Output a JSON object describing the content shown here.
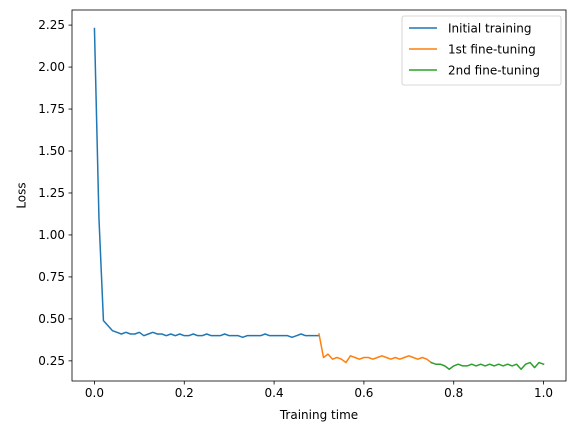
{
  "chart_data": {
    "type": "line",
    "title": "",
    "xlabel": "Training time",
    "ylabel": "Loss",
    "xlim": [
      -0.05,
      1.05
    ],
    "ylim": [
      0.13,
      2.34
    ],
    "xticks": [
      0.0,
      0.2,
      0.4,
      0.6,
      0.8,
      1.0
    ],
    "xtick_labels": [
      "0.0",
      "0.2",
      "0.4",
      "0.6",
      "0.8",
      "1.0"
    ],
    "yticks": [
      0.25,
      0.5,
      0.75,
      1.0,
      1.25,
      1.5,
      1.75,
      2.0,
      2.25
    ],
    "ytick_labels": [
      "0.25",
      "0.50",
      "0.75",
      "1.00",
      "1.25",
      "1.50",
      "1.75",
      "2.00",
      "2.25"
    ],
    "grid": false,
    "legend_position": "top-right",
    "series": [
      {
        "name": "Initial training",
        "color": "#1f77b4",
        "x": [
          0.0,
          0.01,
          0.02,
          0.03,
          0.04,
          0.05,
          0.06,
          0.07,
          0.08,
          0.09,
          0.1,
          0.11,
          0.12,
          0.13,
          0.14,
          0.15,
          0.16,
          0.17,
          0.18,
          0.19,
          0.2,
          0.21,
          0.22,
          0.23,
          0.24,
          0.25,
          0.26,
          0.27,
          0.28,
          0.29,
          0.3,
          0.31,
          0.32,
          0.33,
          0.34,
          0.35,
          0.36,
          0.37,
          0.38,
          0.39,
          0.4,
          0.41,
          0.42,
          0.43,
          0.44,
          0.45,
          0.46,
          0.47,
          0.48,
          0.49,
          0.5
        ],
        "y": [
          2.23,
          1.1,
          0.49,
          0.46,
          0.43,
          0.42,
          0.41,
          0.42,
          0.41,
          0.41,
          0.42,
          0.4,
          0.41,
          0.42,
          0.41,
          0.41,
          0.4,
          0.41,
          0.4,
          0.41,
          0.4,
          0.4,
          0.41,
          0.4,
          0.4,
          0.41,
          0.4,
          0.4,
          0.4,
          0.41,
          0.4,
          0.4,
          0.4,
          0.39,
          0.4,
          0.4,
          0.4,
          0.4,
          0.41,
          0.4,
          0.4,
          0.4,
          0.4,
          0.4,
          0.39,
          0.4,
          0.41,
          0.4,
          0.4,
          0.4,
          0.4
        ]
      },
      {
        "name": "1st fine-tuning",
        "color": "#ff7f0e",
        "x": [
          0.5,
          0.51,
          0.52,
          0.53,
          0.54,
          0.55,
          0.56,
          0.57,
          0.58,
          0.59,
          0.6,
          0.61,
          0.62,
          0.63,
          0.64,
          0.65,
          0.66,
          0.67,
          0.68,
          0.69,
          0.7,
          0.71,
          0.72,
          0.73,
          0.74,
          0.75
        ],
        "y": [
          0.41,
          0.27,
          0.29,
          0.26,
          0.27,
          0.26,
          0.24,
          0.28,
          0.27,
          0.26,
          0.27,
          0.27,
          0.26,
          0.27,
          0.28,
          0.27,
          0.26,
          0.27,
          0.26,
          0.27,
          0.28,
          0.27,
          0.26,
          0.27,
          0.26,
          0.24
        ]
      },
      {
        "name": "2nd fine-tuning",
        "color": "#2ca02c",
        "x": [
          0.75,
          0.76,
          0.77,
          0.78,
          0.79,
          0.8,
          0.81,
          0.82,
          0.83,
          0.84,
          0.85,
          0.86,
          0.87,
          0.88,
          0.89,
          0.9,
          0.91,
          0.92,
          0.93,
          0.94,
          0.95,
          0.96,
          0.97,
          0.98,
          0.99,
          1.0
        ],
        "y": [
          0.24,
          0.23,
          0.23,
          0.22,
          0.2,
          0.22,
          0.23,
          0.22,
          0.22,
          0.23,
          0.22,
          0.23,
          0.22,
          0.23,
          0.22,
          0.23,
          0.22,
          0.23,
          0.22,
          0.23,
          0.2,
          0.23,
          0.24,
          0.21,
          0.24,
          0.23
        ]
      }
    ]
  }
}
